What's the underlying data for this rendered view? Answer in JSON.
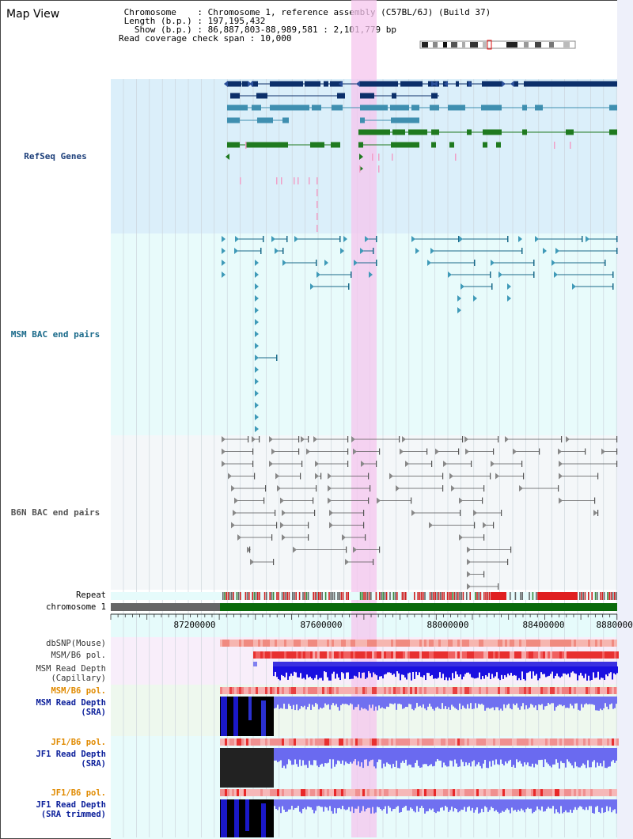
{
  "page": {
    "title": "Map View"
  },
  "info": {
    "line1": " Chromosome    : Chromosome 1, reference assembly (C57BL/6J) (Build 37)",
    "line2": " Length (b.p.) : 197,195,432",
    "line3": "   Show (b.p.) : 86,887,803-88,989,581 : 2,101,779 bp",
    "line4": "Read coverage check span : 10,000"
  },
  "tracks": {
    "refseq": "RefSeq Genes",
    "msm_bac": "MSM BAC end pairs",
    "b6n_bac": "B6N BAC end pairs",
    "repeat": "Repeat",
    "chromosome": "chromosome 1",
    "dbsnp": "dbSNP(Mouse)",
    "msm_b6_pol1": "MSM/B6 pol.",
    "msm_depth_cap_1": "MSM Read Depth",
    "msm_depth_cap_2": "(Capillary)",
    "msm_b6_pol2": "MSM/B6 pol.",
    "msm_depth_sra_1": "MSM Read Depth",
    "msm_depth_sra_2": "(SRA)",
    "jf1_b6_pol1": "JF1/B6 pol.",
    "jf1_depth_sra_1": "JF1 Read Depth",
    "jf1_depth_sra_2": "(SRA)",
    "jf1_b6_pol2": "JF1/B6 pol.",
    "jf1_depth_trim_1": "JF1 Read Depth",
    "jf1_depth_trim_2": "(SRA trimmed)"
  },
  "axis": {
    "ticks": [
      "87200000",
      "87600000",
      "88000000",
      "88400000",
      "88800000"
    ]
  },
  "colors": {
    "refseq_bg": "#dbeffa",
    "msm_bg": "#e8fbfb",
    "b6n_bg": "#f4f7f9",
    "highlight": "#f6c6ee",
    "navy": "#0c2f6a",
    "teal": "#3f8fb0",
    "green": "#1f7a1f",
    "darkgreen": "#0a6a0a",
    "pink": "#f0a0c8",
    "orange": "#e08a00",
    "blue_label": "#0a1e9a",
    "navy_label": "#1d3f7a",
    "teal_label": "#1a6a8a"
  }
}
